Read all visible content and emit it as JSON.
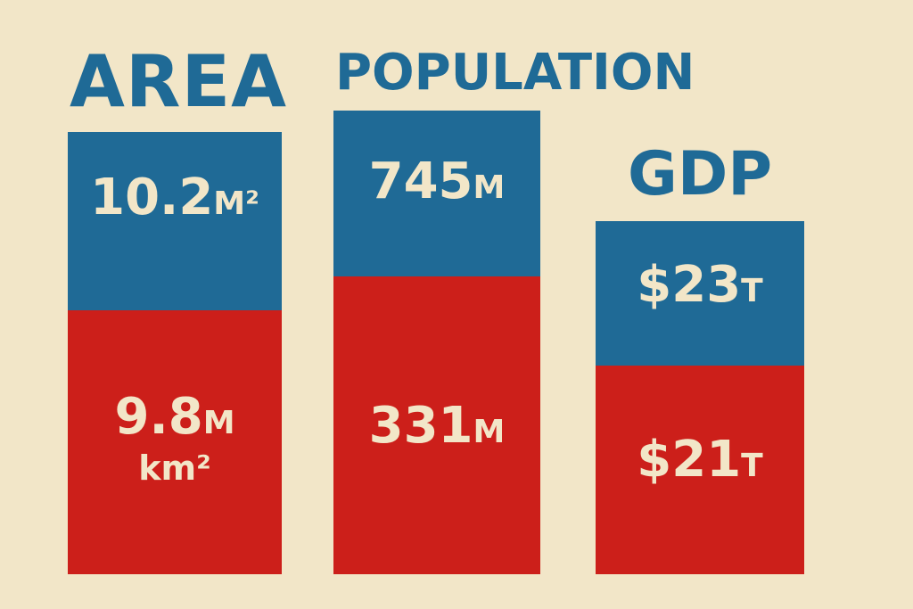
{
  "colors": {
    "background": "#f2e6c8",
    "blue": "#1f6a96",
    "red": "#cc1f1a",
    "text_light": "#f2e6c8"
  },
  "chart_data": {
    "type": "bar",
    "stacked": true,
    "categories": [
      "AREA",
      "POPULATION",
      "GDP"
    ],
    "series": [
      {
        "color": "#cc1f1a",
        "labels": [
          {
            "num": "9.8",
            "unit": "M",
            "unit2": "km²"
          },
          {
            "num": "331",
            "unit": "M",
            "unit2": ""
          },
          {
            "num": "$21",
            "unit": "T",
            "unit2": ""
          }
        ],
        "values": [
          9.8,
          331,
          21
        ]
      },
      {
        "color": "#1f6a96",
        "labels": [
          {
            "num": "10.2",
            "unit": "M²",
            "unit2": ""
          },
          {
            "num": "745",
            "unit": "M",
            "unit2": ""
          },
          {
            "num": "$23",
            "unit": "T",
            "unit2": ""
          }
        ],
        "values": [
          10.2,
          745,
          23
        ]
      }
    ]
  }
}
